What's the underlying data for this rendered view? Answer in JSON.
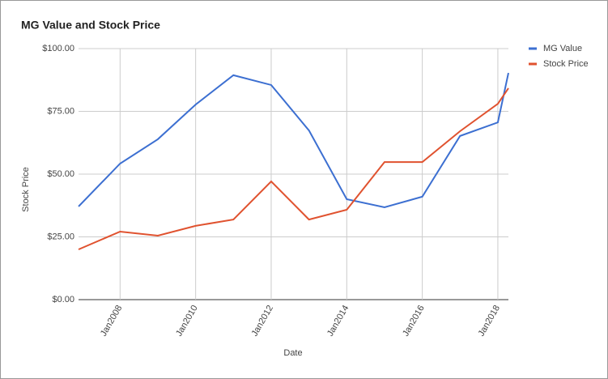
{
  "chart_data": {
    "type": "line",
    "title": "MG Value and Stock Price",
    "x_label": "Date",
    "y_label": "Stock Price",
    "x": [
      2006.9,
      2008,
      2009,
      2010,
      2011,
      2012,
      2013,
      2014,
      2015,
      2016,
      2017,
      2018,
      2018.28
    ],
    "series": [
      {
        "name": "MG Value",
        "color": "#3c6fd1",
        "values": [
          37.1,
          54.2,
          63.9,
          77.7,
          89.4,
          85.5,
          67.4,
          40,
          36.8,
          41,
          65.2,
          70.6,
          90.3
        ]
      },
      {
        "name": "Stock Price",
        "color": "#e0522f",
        "values": [
          20,
          27.1,
          25.5,
          29.4,
          31.9,
          47.1,
          31.9,
          35.8,
          54.8,
          54.8,
          67.1,
          78,
          84.2
        ]
      }
    ],
    "xlim": [
      2006.9,
      2018.28
    ],
    "xticks": [
      {
        "value": 2008,
        "label": "Jan2008"
      },
      {
        "value": 2010,
        "label": "Jan2010"
      },
      {
        "value": 2012,
        "label": "Jan2012"
      },
      {
        "value": 2014,
        "label": "Jan2014"
      },
      {
        "value": 2016,
        "label": "Jan2016"
      },
      {
        "value": 2018,
        "label": "Jan2018"
      }
    ],
    "ylim": [
      0,
      100
    ],
    "yticks": [
      {
        "value": 0,
        "label": "$0.00"
      },
      {
        "value": 25,
        "label": "$25.00"
      },
      {
        "value": 50,
        "label": "$50.00"
      },
      {
        "value": 75,
        "label": "$75.00"
      },
      {
        "value": 100,
        "label": "$100.00"
      }
    ],
    "grid": true,
    "legend": "right"
  }
}
